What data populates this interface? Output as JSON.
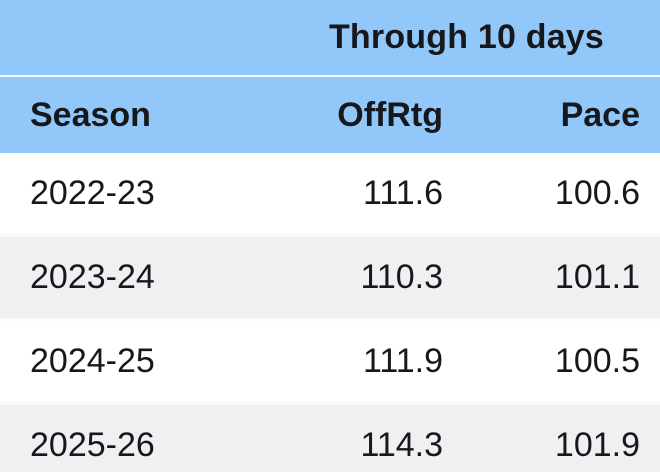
{
  "table": {
    "top_header": "Through 10 days",
    "columns": {
      "season": "Season",
      "offrtg": "OffRtg",
      "pace": "Pace"
    },
    "rows": [
      {
        "season": "2022-23",
        "offrtg": "111.6",
        "pace": "100.6"
      },
      {
        "season": "2023-24",
        "offrtg": "110.3",
        "pace": "101.1"
      },
      {
        "season": "2024-25",
        "offrtg": "111.9",
        "pace": "100.5"
      },
      {
        "season": "2025-26",
        "offrtg": "114.3",
        "pace": "101.9"
      }
    ],
    "colors": {
      "header_bg": "#92c7fa",
      "row_bg": "#ffffff",
      "row_alt_bg": "#eff0f2",
      "text": "#17181b",
      "header_separator": "#ffffff"
    }
  },
  "chart_data": {
    "type": "table",
    "title": "Through 10 days",
    "columns": [
      "Season",
      "OffRtg",
      "Pace"
    ],
    "rows": [
      [
        "2022-23",
        111.6,
        100.6
      ],
      [
        "2023-24",
        110.3,
        101.1
      ],
      [
        "2024-25",
        111.9,
        100.5
      ],
      [
        "2025-26",
        114.3,
        101.9
      ]
    ],
    "layout_hints": {
      "season_align": "left",
      "numeric_align": "right",
      "alternating_row_shading": true,
      "last_row_clipped": true
    }
  }
}
